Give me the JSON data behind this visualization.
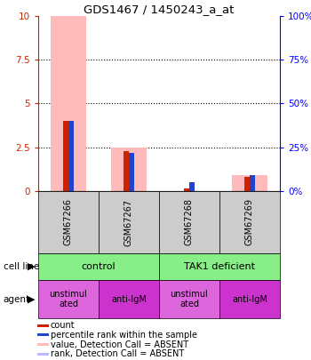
{
  "title": "GDS1467 / 1450243_a_at",
  "samples": [
    "GSM67266",
    "GSM67267",
    "GSM67268",
    "GSM67269"
  ],
  "cell_line_labels": [
    "control",
    "TAK1 deficient"
  ],
  "cell_line_spans": [
    [
      0,
      1
    ],
    [
      2,
      3
    ]
  ],
  "agent_labels": [
    "unstimul\nated",
    "anti-IgM",
    "unstimul\nated",
    "anti-IgM"
  ],
  "cell_line_color": "#88ee88",
  "sample_bg": "#cccccc",
  "ylim": [
    0,
    10
  ],
  "yticks_left": [
    0,
    2.5,
    5.0,
    7.5,
    10.0
  ],
  "ytick_labels_left": [
    "0",
    "2.5",
    "5",
    "7.5",
    "10"
  ],
  "ytick_labels_right": [
    "0%",
    "25%",
    "50%",
    "75%",
    "100%"
  ],
  "bar_count_color": "#cc2200",
  "bar_rank_color": "#2244cc",
  "bar_value_absent_color": "#ffbbbb",
  "bar_rank_absent_color": "#bbbbff",
  "bars": [
    {
      "sample": 0,
      "count": 4.0,
      "rank": 4.0,
      "value_absent": 10.0,
      "rank_absent": null
    },
    {
      "sample": 1,
      "count": 2.3,
      "rank": 2.2,
      "value_absent": 2.5,
      "rank_absent": null
    },
    {
      "sample": 2,
      "count": 0.15,
      "rank": 0.5,
      "value_absent": null,
      "rank_absent": null
    },
    {
      "sample": 3,
      "count": 0.8,
      "rank": 0.9,
      "value_absent": 0.9,
      "rank_absent": null
    }
  ],
  "legend_items": [
    {
      "color": "#cc2200",
      "label": "count"
    },
    {
      "color": "#2244cc",
      "label": "percentile rank within the sample"
    },
    {
      "color": "#ffbbbb",
      "label": "value, Detection Call = ABSENT"
    },
    {
      "color": "#bbbbff",
      "label": "rank, Detection Call = ABSENT"
    }
  ],
  "agent_color_unstim": "#dd66dd",
  "agent_color_antilgm": "#cc33cc"
}
